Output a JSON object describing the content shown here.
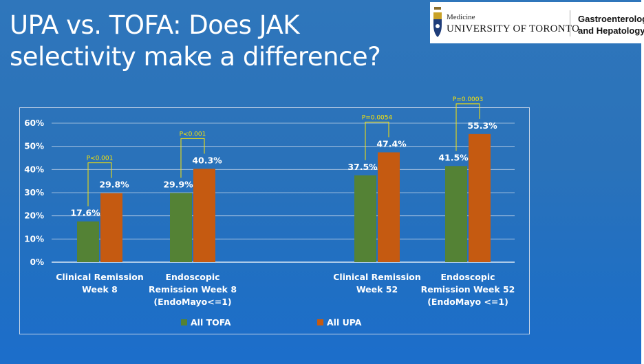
{
  "slide": {
    "title_line1": "UPA vs. TOFA: Does JAK",
    "title_line2": "selectivity make a difference?"
  },
  "logo": {
    "medicine": "Medicine",
    "university": "UNIVERSITY OF TORONTO",
    "dept_line1": "Gastroenterology",
    "dept_line2": "and Hepatology"
  },
  "chart_data": {
    "type": "bar",
    "categories": [
      [
        "Clinical Remission",
        "Week 8"
      ],
      [
        "Endoscopic",
        "Remission Week 8",
        "(EndoMayo<=1)"
      ],
      [
        "Clinical Remission",
        "Week 52"
      ],
      [
        "Endoscopic",
        "Remission Week 52",
        "(EndoMayo <=1)"
      ]
    ],
    "series": [
      {
        "name": "All TOFA",
        "color": "#548235",
        "values": [
          17.6,
          29.9,
          37.5,
          41.5
        ],
        "labels": [
          "17.6%",
          "29.9%",
          "37.5%",
          "41.5%"
        ]
      },
      {
        "name": "All UPA",
        "color": "#c55a11",
        "values": [
          29.8,
          40.3,
          47.4,
          55.3
        ],
        "labels": [
          "29.8%",
          "40.3%",
          "47.4%",
          "55.3%"
        ]
      }
    ],
    "ylim": [
      0,
      60
    ],
    "yticks": [
      "0%",
      "10%",
      "20%",
      "30%",
      "40%",
      "50%",
      "60%"
    ],
    "grid": true,
    "legend_position": "bottom",
    "annotations": [
      "P<0.001",
      "P<0.001",
      "P=0.0054",
      "P=0.0003"
    ],
    "annotation_color": "#ffe600"
  }
}
